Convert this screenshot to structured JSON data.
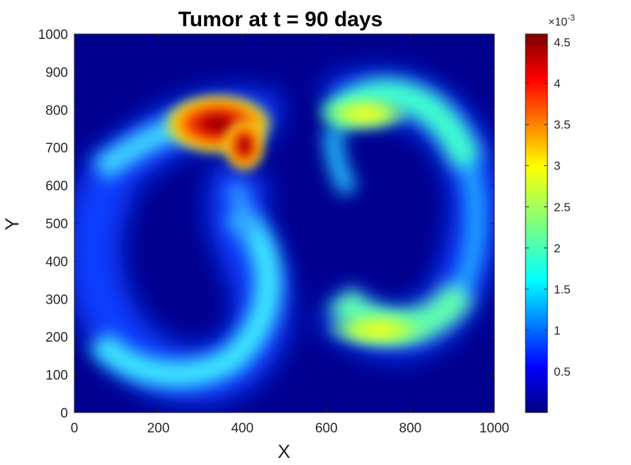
{
  "chart_data": {
    "type": "heatmap",
    "title": "Tumor at t = 90 days",
    "xlabel": "X",
    "ylabel": "Y",
    "xlim": [
      0,
      1000
    ],
    "ylim": [
      0,
      1000
    ],
    "x_ticks": [
      0,
      200,
      400,
      600,
      800,
      1000
    ],
    "y_ticks": [
      0,
      100,
      200,
      300,
      400,
      500,
      600,
      700,
      800,
      900,
      1000
    ],
    "colormap": "jet",
    "colorbar": {
      "label_multiplier": "×10-3",
      "exponent_base": "×10",
      "exponent_power": "-3",
      "range": [
        0.0,
        4.6
      ],
      "ticks": [
        0.5,
        1,
        1.5,
        2,
        2.5,
        3,
        3.5,
        4,
        4.5
      ],
      "tick_labels": [
        "0.5",
        "1",
        "1.5",
        "2",
        "2.5",
        "3",
        "3.5",
        "4",
        "4.5"
      ]
    },
    "features": [
      {
        "region": "left crescent arc",
        "x": 250,
        "y": 400,
        "peak_value": 1.6
      },
      {
        "region": "upper-left hotspot",
        "x": 340,
        "y": 770,
        "peak_value": 4.6
      },
      {
        "region": "right crescent top",
        "x": 720,
        "y": 790,
        "peak_value": 2.7
      },
      {
        "region": "right crescent bottom",
        "x": 730,
        "y": 210,
        "peak_value": 2.8
      }
    ]
  }
}
